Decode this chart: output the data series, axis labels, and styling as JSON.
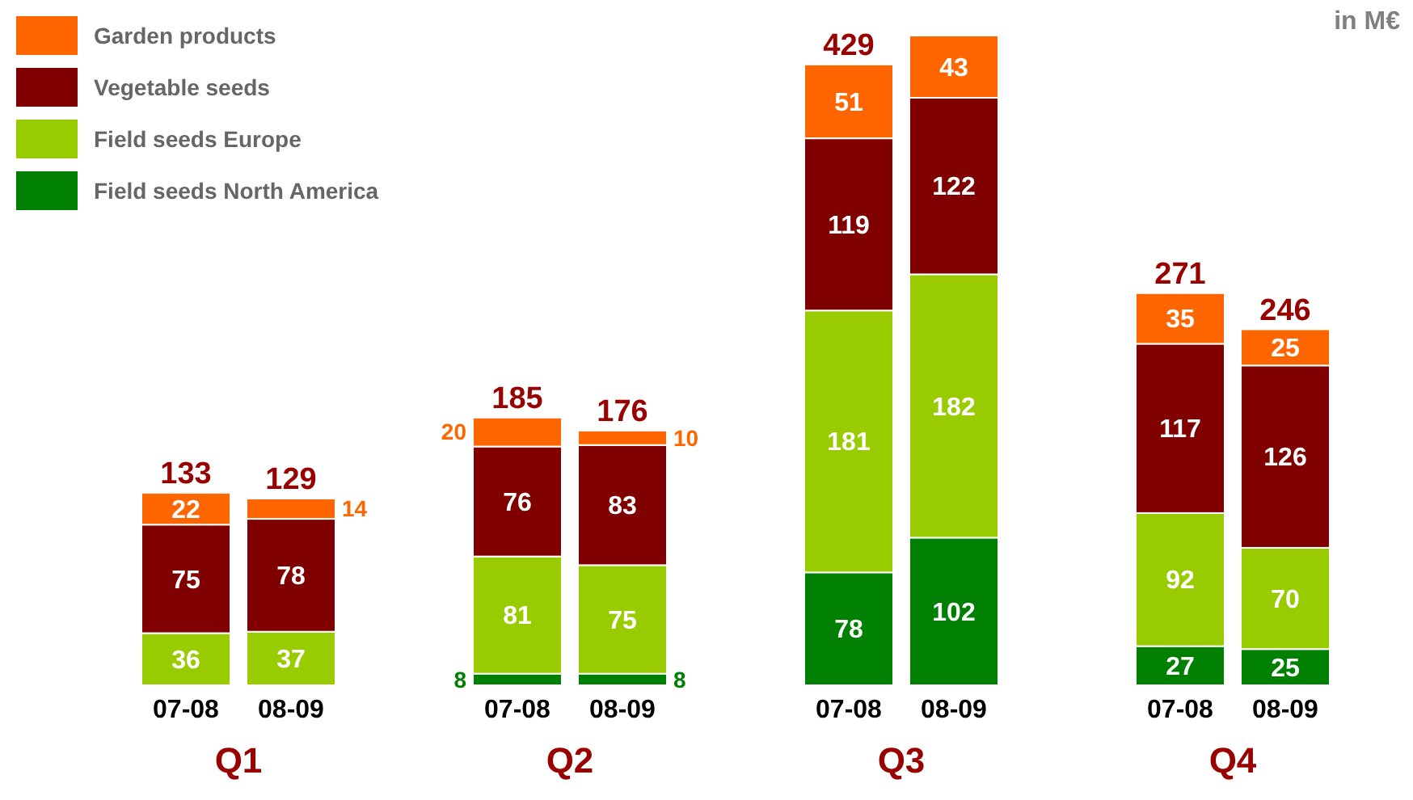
{
  "chart_data": {
    "type": "bar",
    "stacked": true,
    "ylabel": "in M€",
    "categories": [
      "07-08",
      "08-09",
      "07-08",
      "08-09",
      "07-08",
      "08-09",
      "07-08",
      "08-09"
    ],
    "series": [
      {
        "name": "Field seeds North America",
        "color": "#008000",
        "values": [
          null,
          null,
          8,
          8,
          78,
          102,
          27,
          25
        ]
      },
      {
        "name": "Field seeds Europe",
        "color": "#99cc00",
        "values": [
          36,
          37,
          81,
          75,
          181,
          182,
          92,
          70
        ]
      },
      {
        "name": "Vegetable seeds",
        "color": "#800000",
        "values": [
          75,
          78,
          76,
          83,
          119,
          122,
          117,
          126
        ]
      },
      {
        "name": "Garden products",
        "color": "#ff6600",
        "values": [
          22,
          14,
          20,
          10,
          51,
          43,
          35,
          25
        ]
      }
    ],
    "data_labels": true,
    "totals": [
      "133",
      "129",
      "185",
      "176",
      "429",
      null,
      "271",
      "246"
    ],
    "annotations": [
      "Q1",
      "Q2",
      "Q3",
      "Q4"
    ],
    "legend": "top left"
  }
}
